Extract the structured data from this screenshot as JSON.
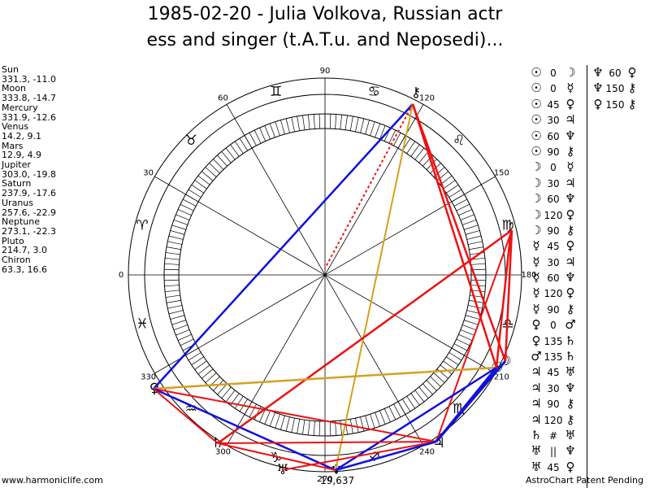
{
  "title": {
    "line1": "1985-02-20 - Julia Volkova, Russian actr",
    "line2": "ess and singer (t.A.T.u. and Neposedi)..."
  },
  "planet_list": [
    {
      "name": "Sun",
      "coords": "331.3, -11.0"
    },
    {
      "name": "Moon",
      "coords": "333.8, -14.7"
    },
    {
      "name": "Mercury",
      "coords": "331.9, -12.6"
    },
    {
      "name": "Venus",
      "coords": "14.2, 9.1"
    },
    {
      "name": "Mars",
      "coords": "12.9, 4.9"
    },
    {
      "name": "Jupiter",
      "coords": "303.0, -19.8"
    },
    {
      "name": "Saturn",
      "coords": "237.9, -17.6"
    },
    {
      "name": "Uranus",
      "coords": "257.6, -22.9"
    },
    {
      "name": "Neptune",
      "coords": "273.1, -22.3"
    },
    {
      "name": "Pluto",
      "coords": "214.7, 3.0"
    },
    {
      "name": "Chiron",
      "coords": "63.3, 16.6"
    }
  ],
  "wheel_labels": {
    "deg_90": "90",
    "deg_120": "120",
    "deg_150": "150",
    "deg_180": "180",
    "deg_210": "210",
    "deg_240": "240",
    "deg_270": "270",
    "deg_300": "300",
    "deg_330": "330",
    "deg_0": "0",
    "deg_30": "30",
    "deg_60": "60",
    "bottom_readout": "-19,637"
  },
  "zodiac_glyphs": [
    {
      "name": "gemini",
      "glyph": "♊"
    },
    {
      "name": "taurus",
      "glyph": "♉"
    },
    {
      "name": "aries",
      "glyph": "♈"
    },
    {
      "name": "pisces",
      "glyph": "♓"
    },
    {
      "name": "aquarius",
      "glyph": "♒"
    },
    {
      "name": "capricorn",
      "glyph": "♑"
    },
    {
      "name": "sagittarius",
      "glyph": "♐"
    },
    {
      "name": "scorpio",
      "glyph": "♏"
    },
    {
      "name": "libra",
      "glyph": "♎"
    },
    {
      "name": "virgo",
      "glyph": "♍"
    },
    {
      "name": "leo",
      "glyph": "♌"
    },
    {
      "name": "cancer",
      "glyph": "♋"
    }
  ],
  "planet_glyphs": {
    "chiron": "⚷",
    "moon": "☽",
    "sun": "☉",
    "jupiter": "♃",
    "uranus": "♅",
    "neptune": "♆",
    "saturn": "♄",
    "pluto": "♀"
  },
  "aspects_col1": [
    {
      "a": "☉",
      "angle": "0",
      "b": "☽"
    },
    {
      "a": "☉",
      "angle": "0",
      "b": "☿"
    },
    {
      "a": "☉",
      "angle": "45",
      "b": "♀"
    },
    {
      "a": "☉",
      "angle": "30",
      "b": "♃"
    },
    {
      "a": "☉",
      "angle": "60",
      "b": "♆"
    },
    {
      "a": "☉",
      "angle": "90",
      "b": "⚷"
    },
    {
      "a": "☽",
      "angle": "0",
      "b": "☿"
    },
    {
      "a": "☽",
      "angle": "30",
      "b": "♃"
    },
    {
      "a": "☽",
      "angle": "60",
      "b": "♆"
    },
    {
      "a": "☽",
      "angle": "120",
      "b": "♀"
    },
    {
      "a": "☽",
      "angle": "90",
      "b": "⚷"
    },
    {
      "a": "☿",
      "angle": "45",
      "b": "♀"
    },
    {
      "a": "☿",
      "angle": "30",
      "b": "♃"
    },
    {
      "a": "☿",
      "angle": "60",
      "b": "♆"
    },
    {
      "a": "☿",
      "angle": "120",
      "b": "♀"
    },
    {
      "a": "☿",
      "angle": "90",
      "b": "⚷"
    },
    {
      "a": "♀",
      "angle": "0",
      "b": "♂"
    },
    {
      "a": "♀",
      "angle": "135",
      "b": "♄"
    },
    {
      "a": "♂",
      "angle": "135",
      "b": "♄"
    },
    {
      "a": "♃",
      "angle": "45",
      "b": "♅"
    },
    {
      "a": "♃",
      "angle": "30",
      "b": "♆"
    },
    {
      "a": "♃",
      "angle": "90",
      "b": "⚷"
    },
    {
      "a": "♃",
      "angle": "120",
      "b": "⚷"
    },
    {
      "a": "♄",
      "angle": "#",
      "b": "♅"
    },
    {
      "a": "♅",
      "angle": "||",
      "b": "♆"
    },
    {
      "a": "♅",
      "angle": "45",
      "b": "♀"
    }
  ],
  "aspects_col2": [
    {
      "a": "♆",
      "angle": "60",
      "b": "♀"
    },
    {
      "a": "♆",
      "angle": "150",
      "b": "⚷"
    },
    {
      "a": "♀",
      "angle": "150",
      "b": "⚷"
    }
  ],
  "colors": {
    "red": "#ee1111",
    "blue": "#1111dd",
    "gold": "#d4a020"
  },
  "footer": {
    "left": "www.harmoniclife.com",
    "right": "AstroChart Patent Pending"
  }
}
